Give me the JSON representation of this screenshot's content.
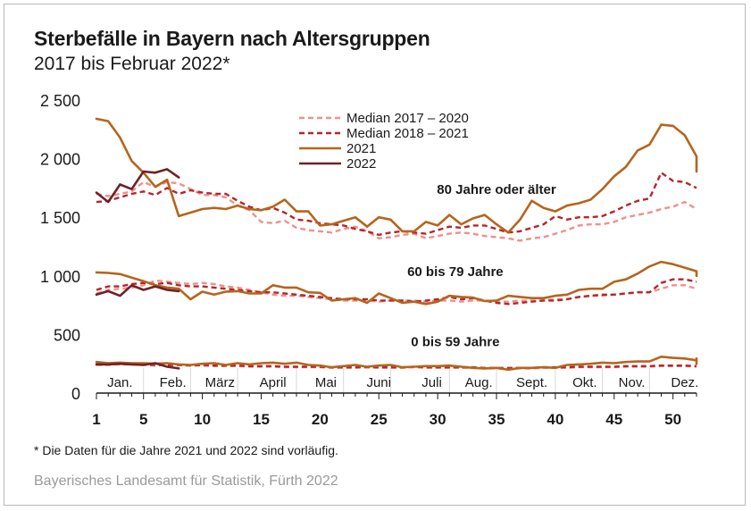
{
  "title": "Sterbefälle in Bayern nach Altersgruppen",
  "subtitle": "2017 bis Februar 2022*",
  "footnote": "* Die Daten für die Jahre 2021 und 2022 sind vorläufig.",
  "source": "Bayerisches Landesamt für Statistik, Fürth 2022",
  "chart_data": {
    "type": "line",
    "title": "Sterbefälle in Bayern nach Altersgruppen",
    "subtitle": "2017 bis Februar 2022*",
    "xlim": [
      1,
      52
    ],
    "ylim": [
      0,
      2500
    ],
    "grid": false,
    "legend_position": "top-center",
    "y_ticks": [
      {
        "value": 0,
        "label": "0"
      },
      {
        "value": 500,
        "label": "500"
      },
      {
        "value": 1000,
        "label": "1 000"
      },
      {
        "value": 1500,
        "label": "1 500"
      },
      {
        "value": 2000,
        "label": "2 000"
      },
      {
        "value": 2500,
        "label": "2 500"
      }
    ],
    "x_ticks": [
      1,
      5,
      10,
      15,
      20,
      25,
      30,
      35,
      40,
      45,
      50
    ],
    "month_labels": [
      {
        "label": "Jan.",
        "week": 3
      },
      {
        "label": "Feb.",
        "week": 7.5
      },
      {
        "label": "März",
        "week": 11.5
      },
      {
        "label": "April",
        "week": 16
      },
      {
        "label": "Mai",
        "week": 20.5
      },
      {
        "label": "Juni",
        "week": 25
      },
      {
        "label": "Juli",
        "week": 29.5
      },
      {
        "label": "Aug.",
        "week": 33.5
      },
      {
        "label": "Sept.",
        "week": 38
      },
      {
        "label": "Okt.",
        "week": 42.5
      },
      {
        "label": "Nov.",
        "week": 46.5
      },
      {
        "label": "Dez.",
        "week": 51
      }
    ],
    "month_boundaries": [
      5,
      9,
      13,
      18,
      22,
      26,
      31,
      35,
      40,
      44,
      48
    ],
    "group_labels": [
      {
        "label": "80 Jahre oder älter",
        "week": 35,
        "value": 1700
      },
      {
        "label": "60 bis 79 Jahre",
        "week": 31.5,
        "value": 1000
      },
      {
        "label": "0 bis 59 Jahre",
        "week": 31.5,
        "value": 400
      }
    ],
    "legend": [
      {
        "label": "Median 2017 – 2020",
        "color": "#f0908a",
        "dashed": true
      },
      {
        "label": "Median 2018 – 2021",
        "color": "#b5262c",
        "dashed": true
      },
      {
        "label": "2021",
        "color": "#b5651d",
        "dashed": false
      },
      {
        "label": "2022",
        "color": "#6e2228",
        "dashed": false
      }
    ],
    "series": [
      {
        "name": "Median 2017 – 2020",
        "group": "80 Jahre oder älter",
        "color": "#f0908a",
        "dashed": true,
        "start_week": 1,
        "values": [
          1700,
          1680,
          1700,
          1720,
          1800,
          1760,
          1800,
          1790,
          1740,
          1690,
          1690,
          1670,
          1600,
          1560,
          1460,
          1450,
          1470,
          1410,
          1390,
          1380,
          1370,
          1400,
          1420,
          1380,
          1320,
          1330,
          1350,
          1360,
          1320,
          1340,
          1360,
          1370,
          1360,
          1340,
          1330,
          1320,
          1300,
          1320,
          1330,
          1360,
          1390,
          1430,
          1440,
          1440,
          1460,
          1500,
          1520,
          1540,
          1570,
          1590,
          1630,
          1570
        ]
      },
      {
        "name": "Median 2018 – 2021",
        "group": "80 Jahre oder älter",
        "color": "#b5262c",
        "dashed": true,
        "start_week": 1,
        "values": [
          1630,
          1640,
          1670,
          1700,
          1720,
          1690,
          1750,
          1700,
          1730,
          1710,
          1700,
          1700,
          1640,
          1590,
          1560,
          1580,
          1540,
          1480,
          1470,
          1450,
          1440,
          1430,
          1400,
          1380,
          1350,
          1370,
          1380,
          1370,
          1360,
          1390,
          1420,
          1410,
          1430,
          1430,
          1400,
          1370,
          1380,
          1410,
          1440,
          1510,
          1480,
          1500,
          1500,
          1510,
          1550,
          1600,
          1640,
          1660,
          1880,
          1810,
          1800,
          1750
        ]
      },
      {
        "name": "2021",
        "group": "80 Jahre oder älter",
        "color": "#b5651d",
        "dashed": false,
        "start_week": 1,
        "values": [
          2340,
          2320,
          2180,
          1980,
          1880,
          1760,
          1820,
          1510,
          1540,
          1570,
          1580,
          1570,
          1600,
          1570,
          1560,
          1590,
          1650,
          1550,
          1550,
          1430,
          1440,
          1470,
          1500,
          1420,
          1500,
          1480,
          1380,
          1380,
          1460,
          1430,
          1520,
          1440,
          1490,
          1520,
          1440,
          1370,
          1480,
          1640,
          1580,
          1550,
          1600,
          1620,
          1650,
          1740,
          1850,
          1930,
          2070,
          2120,
          2290,
          2280,
          2200,
          2020,
          1960,
          1890
        ]
      },
      {
        "name": "2022",
        "group": "80 Jahre oder älter",
        "color": "#6e2228",
        "dashed": false,
        "start_week": 1,
        "values": [
          1710,
          1630,
          1780,
          1740,
          1890,
          1880,
          1910,
          1840
        ]
      },
      {
        "name": "Median 2017 – 2020",
        "group": "60 bis 79 Jahre",
        "color": "#f0908a",
        "dashed": true,
        "start_week": 1,
        "values": [
          850,
          880,
          890,
          900,
          920,
          960,
          950,
          940,
          930,
          940,
          930,
          910,
          900,
          880,
          860,
          840,
          830,
          830,
          820,
          810,
          800,
          790,
          790,
          790,
          780,
          790,
          790,
          790,
          780,
          790,
          790,
          780,
          790,
          790,
          780,
          780,
          790,
          790,
          790,
          800,
          800,
          820,
          830,
          830,
          840,
          850,
          860,
          860,
          890,
          920,
          920,
          890
        ]
      },
      {
        "name": "Median 2018 – 2021",
        "group": "60 bis 79 Jahre",
        "color": "#b5262c",
        "dashed": true,
        "start_week": 1,
        "values": [
          880,
          910,
          910,
          930,
          940,
          930,
          940,
          920,
          910,
          910,
          900,
          890,
          880,
          870,
          860,
          860,
          850,
          840,
          830,
          820,
          810,
          800,
          800,
          800,
          790,
          790,
          790,
          780,
          790,
          800,
          820,
          800,
          810,
          790,
          770,
          760,
          770,
          780,
          790,
          790,
          800,
          820,
          830,
          840,
          840,
          850,
          860,
          860,
          940,
          970,
          970,
          950
        ]
      },
      {
        "name": "2021",
        "group": "60 bis 79 Jahre",
        "color": "#b5651d",
        "dashed": false,
        "start_week": 1,
        "values": [
          1030,
          1025,
          1015,
          985,
          955,
          920,
          900,
          890,
          800,
          865,
          840,
          865,
          870,
          850,
          850,
          920,
          900,
          900,
          860,
          855,
          790,
          800,
          810,
          770,
          850,
          810,
          770,
          780,
          760,
          780,
          830,
          820,
          815,
          785,
          790,
          830,
          820,
          810,
          810,
          830,
          840,
          880,
          890,
          890,
          950,
          970,
          1020,
          1080,
          1120,
          1100,
          1070,
          1040,
          1000
        ]
      },
      {
        "name": "2022",
        "group": "60 bis 79 Jahre",
        "color": "#6e2228",
        "dashed": false,
        "start_week": 1,
        "values": [
          840,
          870,
          830,
          920,
          880,
          910,
          880,
          870
        ]
      },
      {
        "name": "Median 2017 – 2020",
        "group": "0 bis 59 Jahre",
        "color": "#f0908a",
        "dashed": true,
        "start_week": 1,
        "values": [
          240,
          240,
          245,
          245,
          240,
          235,
          240,
          240,
          235,
          235,
          230,
          230,
          230,
          225,
          225,
          225,
          220,
          220,
          220,
          220,
          215,
          215,
          215,
          220,
          215,
          215,
          215,
          220,
          215,
          215,
          215,
          215,
          215,
          210,
          210,
          210,
          210,
          210,
          215,
          215,
          215,
          220,
          220,
          220,
          220,
          225,
          225,
          225,
          230,
          230,
          230,
          225
        ]
      },
      {
        "name": "Median 2018 – 2021",
        "group": "0 bis 59 Jahre",
        "color": "#b5262c",
        "dashed": true,
        "start_week": 1,
        "values": [
          245,
          250,
          250,
          250,
          245,
          240,
          240,
          240,
          235,
          240,
          235,
          235,
          235,
          230,
          230,
          230,
          225,
          225,
          225,
          225,
          220,
          220,
          220,
          220,
          220,
          220,
          220,
          225,
          220,
          220,
          220,
          220,
          220,
          215,
          215,
          215,
          215,
          215,
          220,
          220,
          220,
          225,
          225,
          225,
          225,
          230,
          230,
          230,
          235,
          235,
          235,
          230
        ]
      },
      {
        "name": "2021",
        "group": "0 bis 59 Jahre",
        "color": "#b5651d",
        "dashed": false,
        "start_week": 1,
        "values": [
          265,
          255,
          260,
          255,
          255,
          250,
          255,
          245,
          240,
          250,
          255,
          240,
          255,
          245,
          255,
          260,
          250,
          260,
          240,
          235,
          220,
          230,
          240,
          225,
          235,
          240,
          220,
          225,
          230,
          230,
          235,
          225,
          215,
          210,
          215,
          200,
          215,
          215,
          220,
          215,
          240,
          245,
          250,
          260,
          255,
          265,
          270,
          270,
          310,
          300,
          295,
          280,
          295,
          250
        ]
      },
      {
        "name": "2022",
        "group": "0 bis 59 Jahre",
        "color": "#6e2228",
        "dashed": false,
        "start_week": 1,
        "values": [
          245,
          245,
          250,
          245,
          240,
          255,
          225,
          210
        ]
      }
    ]
  }
}
